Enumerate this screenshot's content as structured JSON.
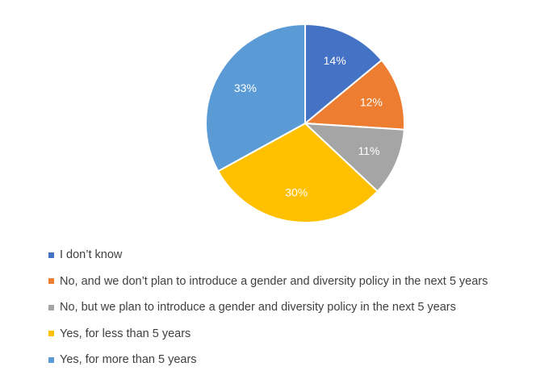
{
  "chart_data": {
    "type": "pie",
    "categories": [
      "I don’t know",
      "No, and we don’t plan to introduce a gender and diversity policy in the next 5 years",
      "No, but we plan to introduce a gender and diversity policy in the next 5 years",
      "Yes, for less than 5 years",
      "Yes, for more than 5 years"
    ],
    "values": [
      14,
      12,
      11,
      30,
      33
    ],
    "data_labels": [
      "14%",
      "12%",
      "11%",
      "30%",
      "33%"
    ],
    "colors": [
      "#4472C4",
      "#ED7D31",
      "#A5A5A5",
      "#FFC000",
      "#5B9BD5"
    ],
    "start_angle_degrees": 0,
    "direction": "clockwise",
    "legend_position": "bottom-left"
  }
}
